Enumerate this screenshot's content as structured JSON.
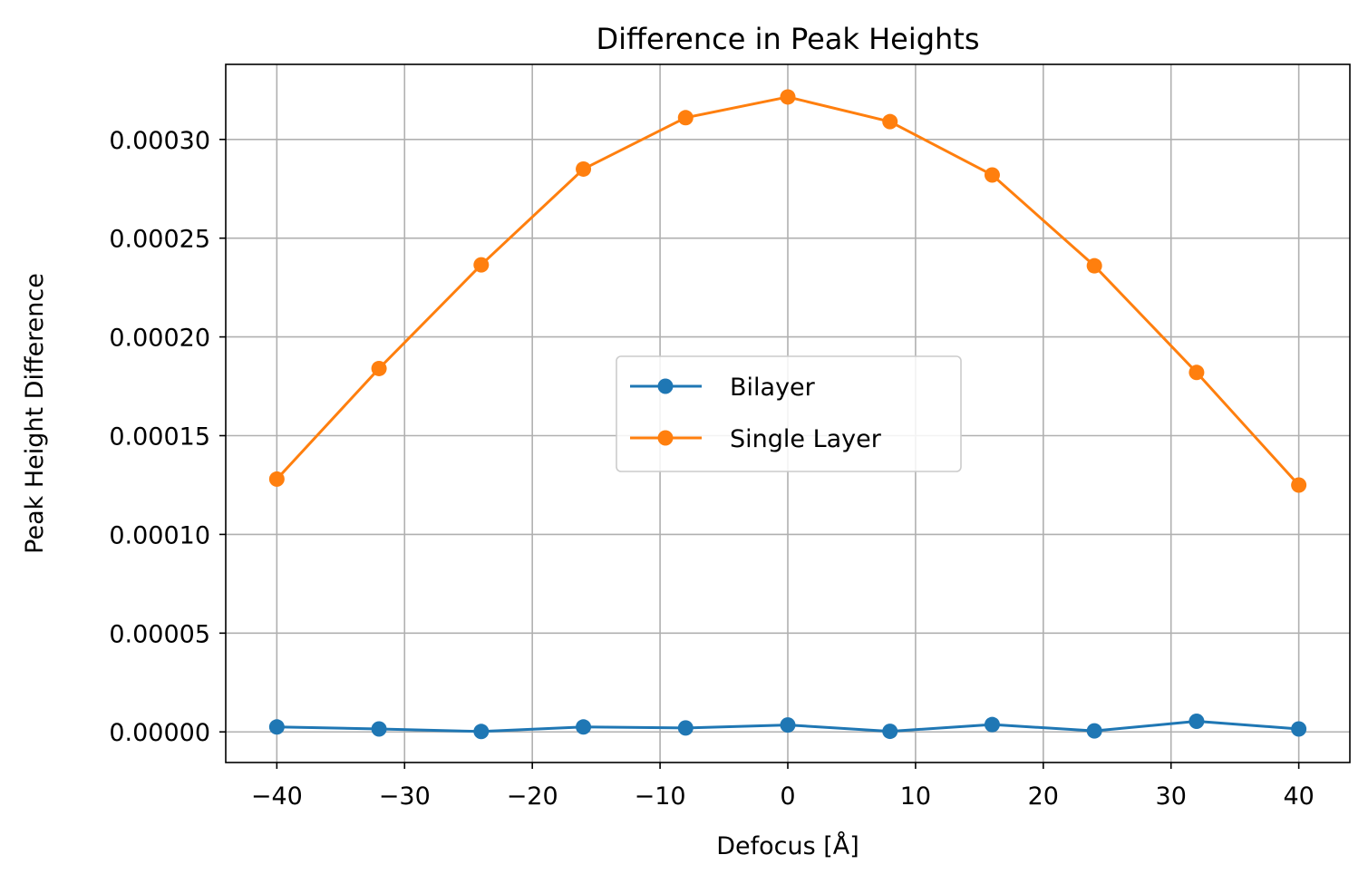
{
  "chart_data": {
    "type": "line",
    "title": "Difference in Peak Heights",
    "xlabel": "Defocus [Å]",
    "ylabel": "Peak Height Difference",
    "x": [
      -40,
      -32,
      -24,
      -16,
      -8,
      0,
      8,
      16,
      24,
      32,
      40
    ],
    "xlim": [
      -44,
      44
    ],
    "ylim": [
      -1.55e-05,
      0.000338
    ],
    "xticks": [
      -40,
      -30,
      -20,
      -10,
      0,
      10,
      20,
      30,
      40
    ],
    "xtick_labels": [
      "−40",
      "−30",
      "−20",
      "−10",
      "0",
      "10",
      "20",
      "30",
      "40"
    ],
    "yticks": [
      0,
      5e-05,
      0.0001,
      0.00015,
      0.0002,
      0.00025,
      0.0003
    ],
    "ytick_labels": [
      "0.00000",
      "0.00005",
      "0.00010",
      "0.00015",
      "0.00020",
      "0.00025",
      "0.00030"
    ],
    "grid": true,
    "legend_position": "center",
    "series": [
      {
        "name": "Bilayer",
        "color": "#1f77b4",
        "marker": "circle",
        "values": [
          2.5e-06,
          1.5e-06,
          2e-07,
          2.5e-06,
          2e-06,
          3.5e-06,
          3e-07,
          3.7e-06,
          5e-07,
          5.4e-06,
          1.5e-06
        ]
      },
      {
        "name": "Single Layer",
        "color": "#ff7f0e",
        "marker": "circle",
        "values": [
          0.000128,
          0.000184,
          0.0002365,
          0.000285,
          0.000311,
          0.0003215,
          0.000309,
          0.000282,
          0.000236,
          0.000182,
          0.000125
        ]
      }
    ]
  }
}
